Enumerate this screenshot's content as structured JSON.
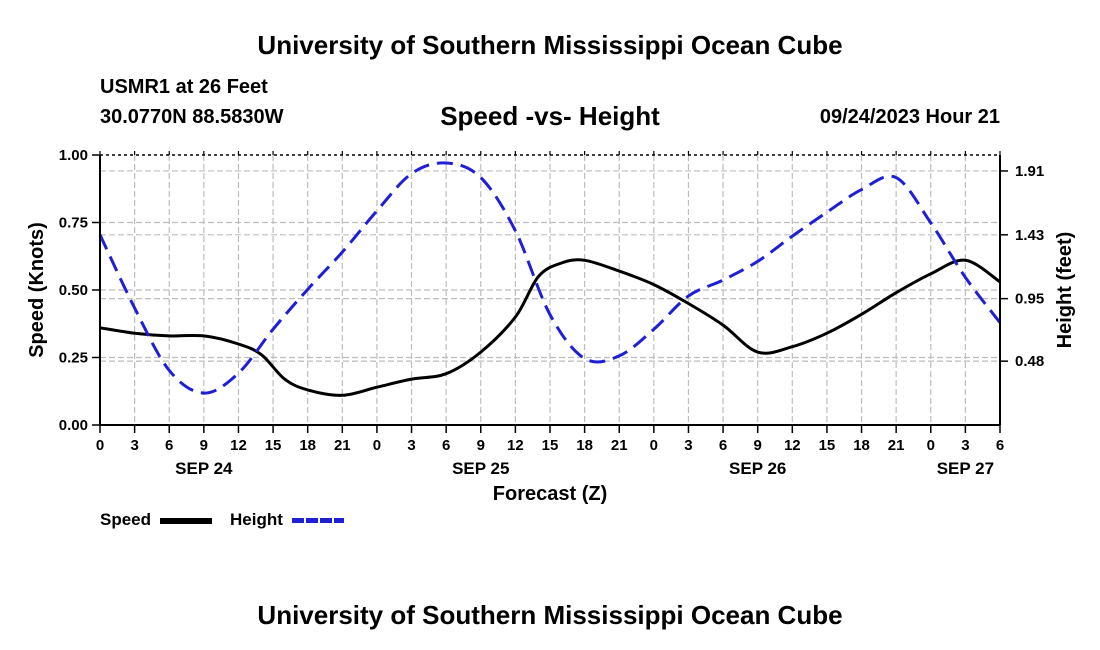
{
  "header": {
    "title": "University of Southern Mississippi Ocean Cube",
    "station": "USMR1 at 26 Feet",
    "coords": "30.0770N  88.5830W",
    "timestamp": "09/24/2023 Hour 21"
  },
  "footer": {
    "title": "University of Southern Mississippi Ocean Cube"
  },
  "chart_data": {
    "type": "line",
    "title": "Speed -vs- Height",
    "xlabel": "Forecast (Z)",
    "ylabel": "Speed (Knots)",
    "ylabel_right": "Height (feet)",
    "x_hours_range": [
      0,
      78
    ],
    "x_tick_labels": [
      "0",
      "3",
      "6",
      "9",
      "12",
      "15",
      "18",
      "21",
      "0",
      "3",
      "6",
      "9",
      "12",
      "15",
      "18",
      "21",
      "0",
      "3",
      "6",
      "9",
      "12",
      "15",
      "18",
      "21",
      "0",
      "3",
      "6"
    ],
    "date_labels": [
      {
        "label": "SEP 24",
        "hour": 9
      },
      {
        "label": "SEP 25",
        "hour": 33
      },
      {
        "label": "SEP 26",
        "hour": 57
      },
      {
        "label": "SEP 27",
        "hour": 75
      }
    ],
    "ylim": [
      0,
      1
    ],
    "y_ticks": [
      "0.00",
      "0.25",
      "0.50",
      "0.75",
      "1.00"
    ],
    "y2_ticks": [
      {
        "label": "0.48",
        "value": 0.48
      },
      {
        "label": "0.95",
        "value": 0.95
      },
      {
        "label": "1.43",
        "value": 1.43
      },
      {
        "label": "1.91",
        "value": 1.91
      }
    ],
    "y2lim": [
      0,
      2.03
    ],
    "grid": true,
    "series": [
      {
        "name": "Speed",
        "axis": "left",
        "color": "#000000",
        "dash": "solid",
        "x": [
          0,
          3,
          6,
          9,
          12,
          14,
          16,
          18,
          21,
          24,
          27,
          30,
          33,
          36,
          38,
          40,
          42,
          45,
          48,
          51,
          54,
          57,
          60,
          63,
          66,
          69,
          72,
          75,
          78
        ],
        "values": [
          0.36,
          0.34,
          0.33,
          0.33,
          0.3,
          0.26,
          0.17,
          0.13,
          0.11,
          0.14,
          0.17,
          0.19,
          0.27,
          0.4,
          0.55,
          0.6,
          0.61,
          0.57,
          0.52,
          0.45,
          0.37,
          0.27,
          0.29,
          0.34,
          0.41,
          0.49,
          0.56,
          0.61,
          0.53
        ]
      },
      {
        "name": "Height",
        "axis": "right",
        "color": "#1f1fd6",
        "dash": "dashed",
        "x": [
          0,
          3,
          6,
          9,
          12,
          15,
          18,
          21,
          24,
          27,
          30,
          33,
          36,
          39,
          42,
          45,
          48,
          51,
          54,
          57,
          60,
          63,
          66,
          69,
          72,
          75,
          78
        ],
        "values": [
          1.43,
          0.88,
          0.41,
          0.24,
          0.39,
          0.72,
          1.02,
          1.3,
          1.61,
          1.89,
          1.97,
          1.86,
          1.46,
          0.83,
          0.5,
          0.52,
          0.72,
          0.97,
          1.09,
          1.23,
          1.42,
          1.6,
          1.77,
          1.86,
          1.52,
          1.11,
          0.77
        ]
      }
    ]
  },
  "legend": {
    "items": [
      {
        "label": "Speed",
        "color": "#000000"
      },
      {
        "label": "Height",
        "color": "#1f1fd6"
      }
    ]
  }
}
